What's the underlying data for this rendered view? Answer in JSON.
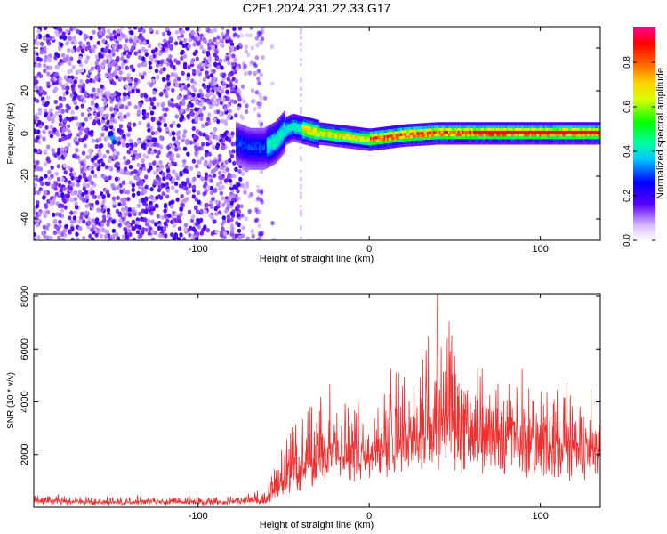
{
  "title": "C2E1.2024.231.22.33.G17",
  "chart_data": [
    {
      "type": "heatmap",
      "xlabel": "Height of straight line (km)",
      "ylabel": "Frequency (Hz)",
      "xlim": [
        -196,
        135
      ],
      "ylim": [
        -50,
        50
      ],
      "x_ticks": [
        -100,
        0,
        100
      ],
      "y_ticks": [
        -40,
        -20,
        0,
        20,
        40
      ],
      "colorbar": {
        "label": "Normalized spectral amplitude",
        "range": [
          0,
          0.96
        ],
        "ticks": [
          "0.0",
          "0.2",
          "0.4",
          "0.6",
          "0.8"
        ]
      },
      "ridge": {
        "description_points_x": [
          -76,
          -70,
          -62,
          -55,
          -50,
          -45,
          -40,
          -30,
          -20,
          -10,
          0,
          10,
          20,
          40,
          60,
          80,
          100,
          120,
          135
        ],
        "frequency_y": [
          -4,
          -6,
          -6,
          -3,
          2,
          4,
          3,
          1,
          0,
          -1,
          -2,
          -1,
          0,
          1,
          1,
          1,
          1,
          1,
          1
        ]
      },
      "grid": false
    },
    {
      "type": "line",
      "xlabel": "Height of straight line (km)",
      "ylabel": "SNR (10 * v/v)",
      "xlim": [
        -196,
        135
      ],
      "ylim": [
        0,
        8100
      ],
      "x_ticks": [
        -100,
        0,
        100
      ],
      "y_ticks": [
        2000,
        4000,
        6000,
        8000
      ],
      "color": "#f03030",
      "envelope": {
        "x": [
          -196,
          -180,
          -150,
          -120,
          -90,
          -70,
          -60,
          -50,
          -45,
          -40,
          -35,
          -30,
          -20,
          -10,
          0,
          10,
          20,
          30,
          40,
          45,
          50,
          60,
          70,
          80,
          90,
          100,
          110,
          120,
          135
        ],
        "base": [
          250,
          220,
          200,
          220,
          200,
          250,
          300,
          900,
          1200,
          1400,
          1600,
          1800,
          2000,
          2200,
          2000,
          2400,
          2700,
          3000,
          3200,
          3400,
          3000,
          2700,
          2800,
          2600,
          2600,
          2500,
          2500,
          2400,
          2500
        ],
        "amplitude": [
          300,
          250,
          200,
          200,
          200,
          250,
          350,
          1500,
          2000,
          2200,
          2400,
          2600,
          2500,
          2200,
          2000,
          2300,
          2800,
          2900,
          3800,
          4500,
          3200,
          2800,
          2600,
          2500,
          2300,
          2200,
          2200,
          2000,
          2000
        ]
      },
      "peak": {
        "x": 40,
        "y": 8100
      }
    }
  ]
}
